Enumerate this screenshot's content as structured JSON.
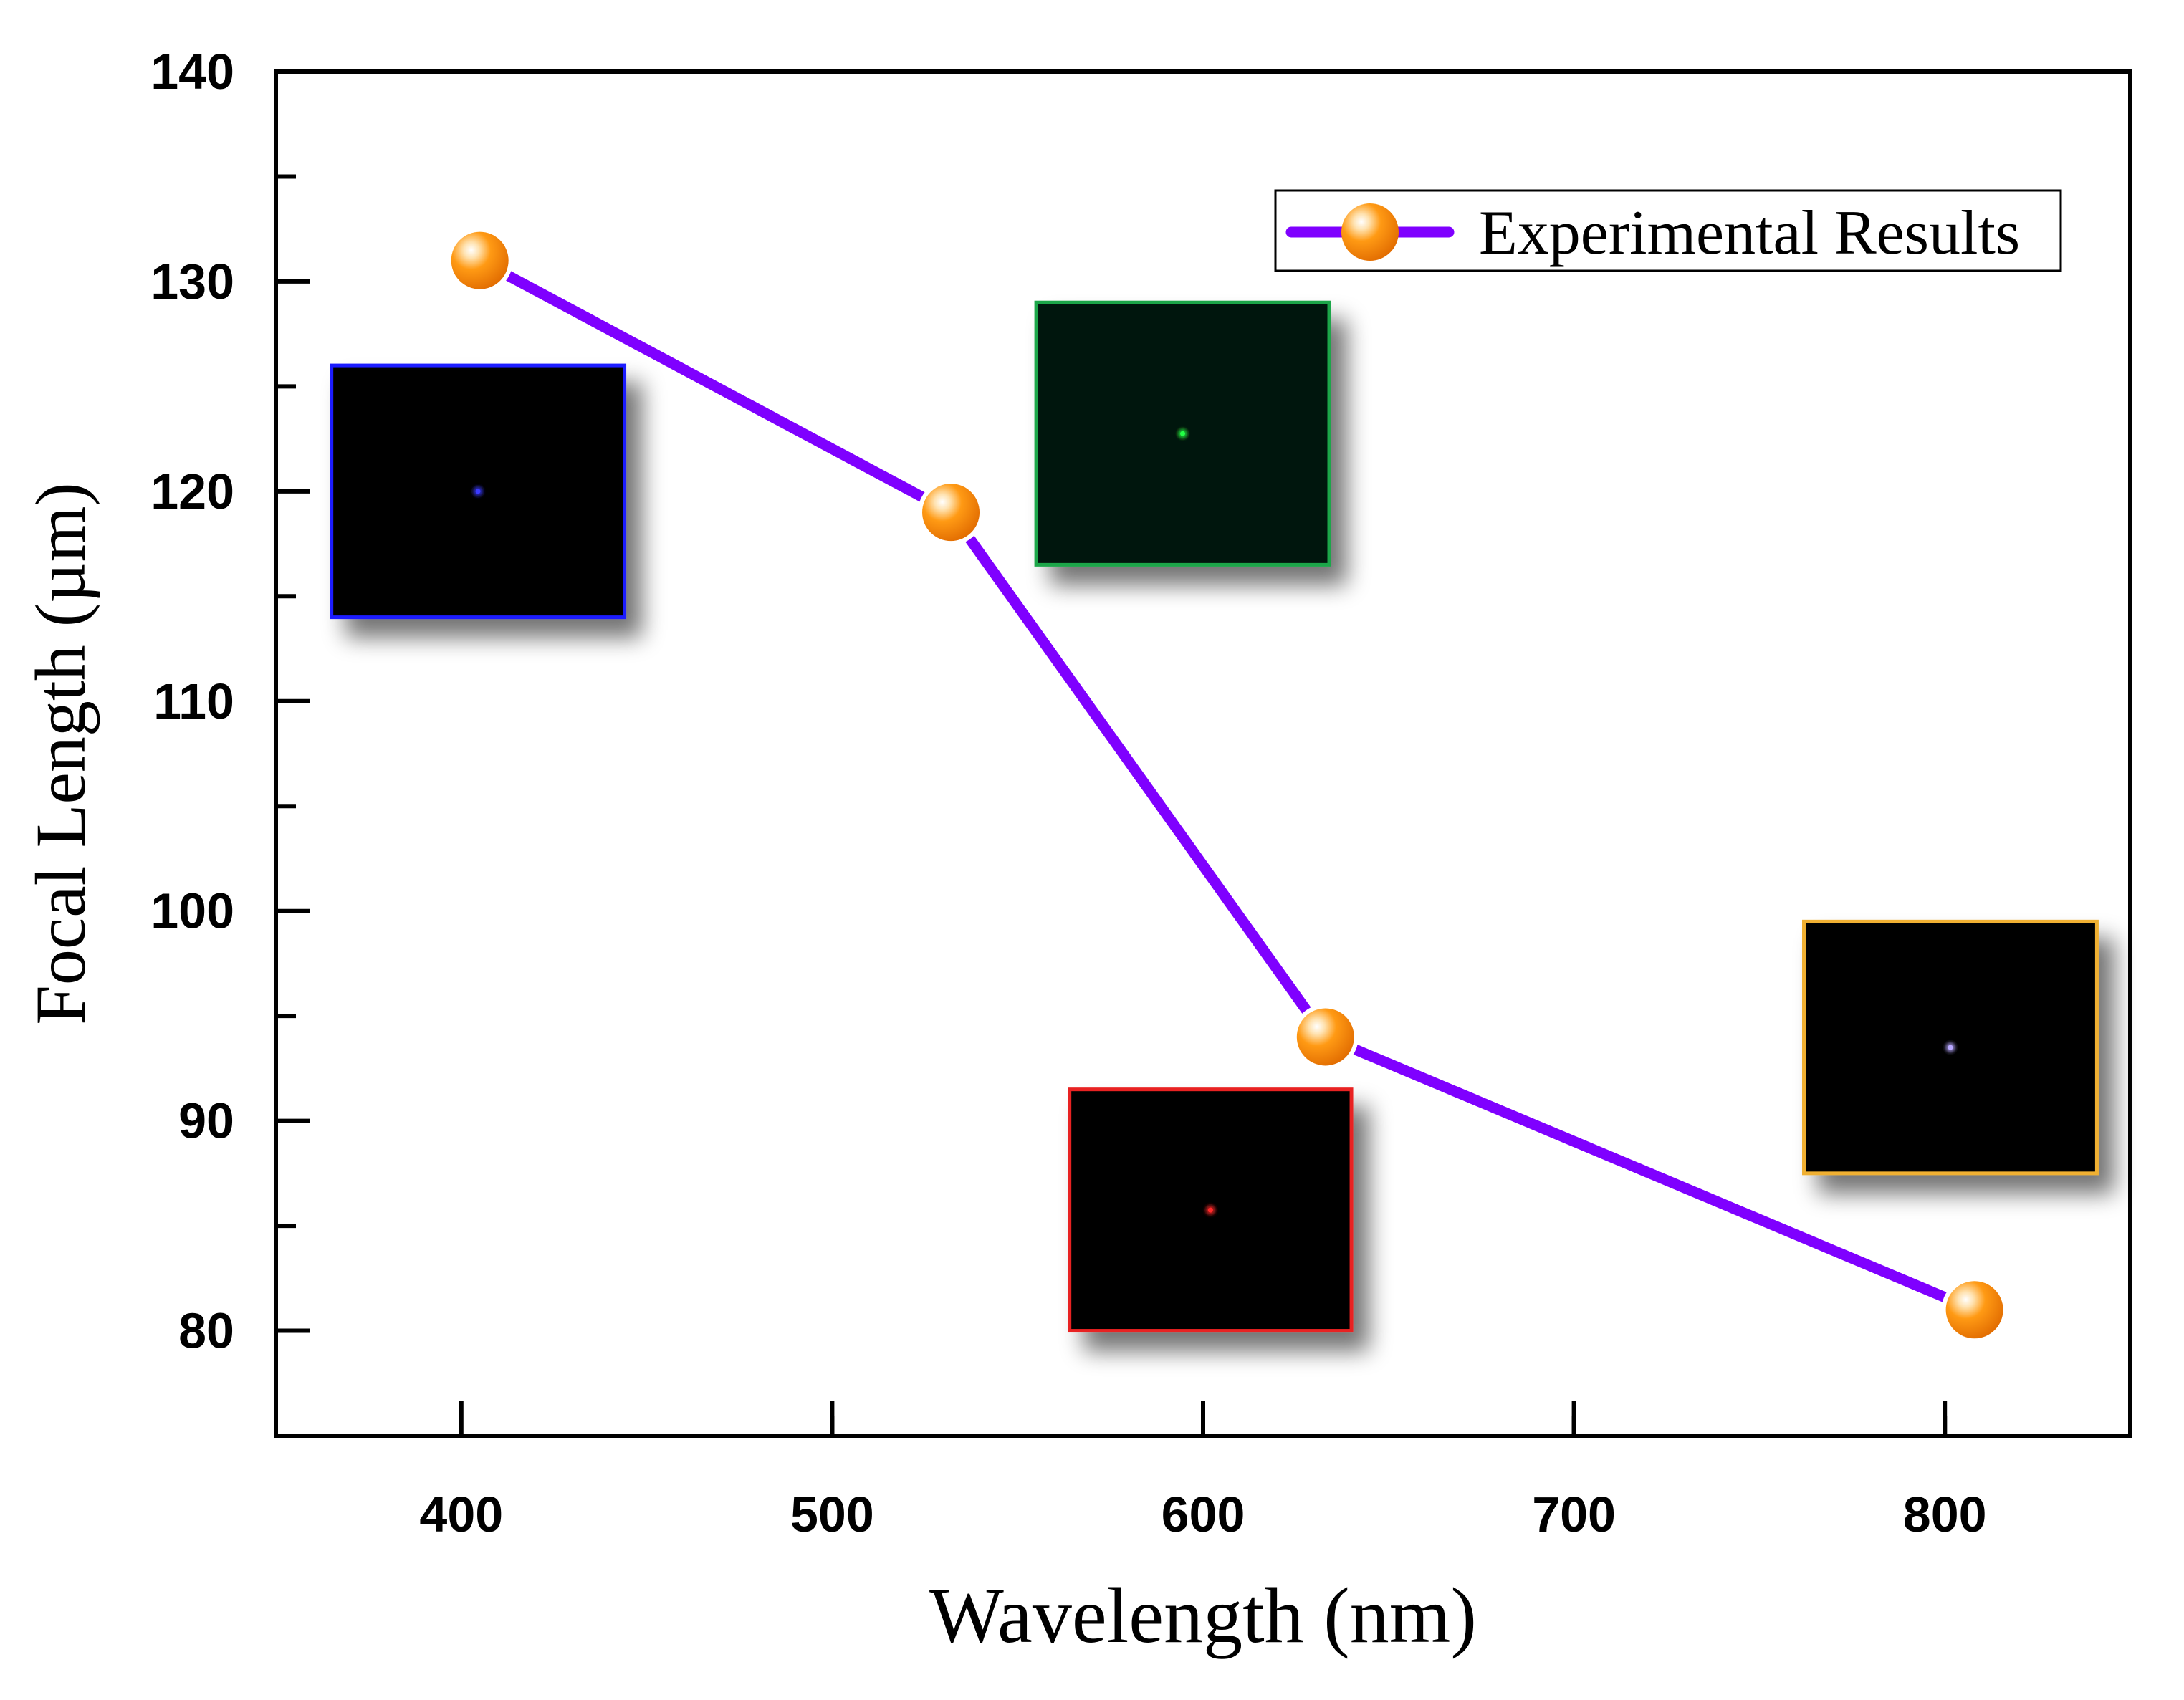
{
  "chart_data": {
    "type": "line",
    "title": "",
    "xlabel": "Wavelength (nm)",
    "ylabel": "Focal Length (µm)",
    "xlim": [
      350,
      850
    ],
    "ylim": [
      75,
      140
    ],
    "x_ticks": [
      400,
      500,
      600,
      700,
      800
    ],
    "x_tick_labels": [
      "400",
      "500",
      "600",
      "700",
      "800"
    ],
    "y_ticks": [
      80,
      90,
      100,
      110,
      120,
      130,
      140
    ],
    "y_tick_labels": [
      "80",
      "90",
      "100",
      "110",
      "120",
      "130",
      "140"
    ],
    "grid": false,
    "legend": {
      "position": "top-right",
      "entries": [
        "Experimental Results"
      ]
    },
    "series": [
      {
        "name": "Experimental Results",
        "color": "#7f00ff",
        "marker_color": "#ff8c00",
        "x": [
          405,
          532,
          633,
          808
        ],
        "y": [
          131,
          119,
          94,
          81
        ]
      }
    ],
    "insets": [
      {
        "name": "blue-spot-inset",
        "border_color": "#1a1aff",
        "spot_color": "#3a3aff",
        "x_range": [
          365,
          444
        ],
        "y_range": [
          114,
          126
        ]
      },
      {
        "name": "green-spot-inset",
        "border_color": "#1ea64a",
        "spot_color": "#22ff44",
        "x_range": [
          555,
          634
        ],
        "y_range": [
          116.5,
          129
        ]
      },
      {
        "name": "red-spot-inset",
        "border_color": "#e82020",
        "spot_color": "#ff2a2a",
        "x_range": [
          564,
          640
        ],
        "y_range": [
          80,
          91.5
        ]
      },
      {
        "name": "orange-spot-inset",
        "border_color": "#f0b030",
        "spot_color": "#b8a8ff",
        "x_range": [
          762,
          841
        ],
        "y_range": [
          87.5,
          99.5
        ]
      }
    ]
  }
}
